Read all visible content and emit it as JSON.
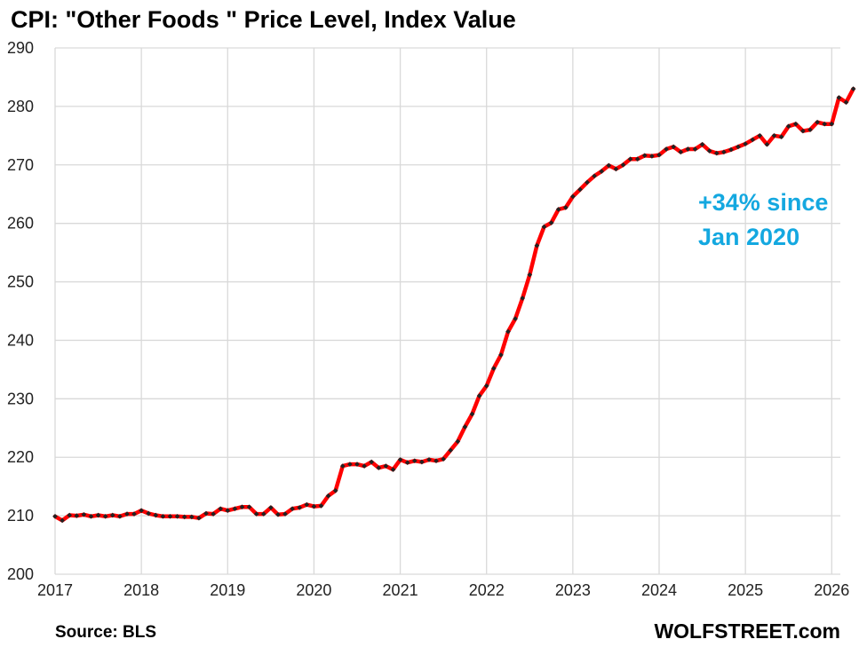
{
  "chart_data": {
    "type": "line",
    "title": "CPI: \"Other Foods \" Price Level, Index Value",
    "xlabel": "",
    "ylabel": "",
    "xlim": [
      2017,
      2026.1
    ],
    "ylim": [
      200,
      290
    ],
    "y_ticks": [
      200,
      210,
      220,
      230,
      240,
      250,
      260,
      270,
      280,
      290
    ],
    "x_ticks": [
      2017,
      2018,
      2019,
      2020,
      2021,
      2022,
      2023,
      2024,
      2025,
      2026
    ],
    "grid": true,
    "legend": "none",
    "series": [
      {
        "name": "Other Foods CPI",
        "color": "#ff0000",
        "marker_color": "#222222",
        "start": "2017-01",
        "frequency": "monthly",
        "values": [
          209.9,
          209.2,
          210.1,
          210.0,
          210.2,
          209.9,
          210.1,
          209.9,
          210.1,
          209.9,
          210.3,
          210.3,
          210.9,
          210.4,
          210.1,
          209.9,
          209.9,
          209.9,
          209.8,
          209.8,
          209.6,
          210.4,
          210.3,
          211.2,
          210.9,
          211.2,
          211.5,
          211.5,
          210.3,
          210.3,
          211.4,
          210.2,
          210.3,
          211.2,
          211.4,
          211.9,
          211.6,
          211.7,
          213.4,
          214.3,
          218.5,
          218.8,
          218.8,
          218.5,
          219.2,
          218.2,
          218.5,
          217.9,
          219.6,
          219.1,
          219.4,
          219.2,
          219.6,
          219.4,
          219.7,
          221.2,
          222.7,
          225.2,
          227.4,
          230.5,
          232.2,
          235.2,
          237.5,
          241.5,
          243.7,
          247.2,
          251.2,
          256.2,
          259.4,
          260.1,
          262.4,
          262.7,
          264.6,
          265.8,
          267.0,
          268.1,
          268.9,
          269.9,
          269.3,
          270.0,
          271.0,
          271.0,
          271.6,
          271.5,
          271.7,
          272.7,
          273.1,
          272.2,
          272.7,
          272.7,
          273.5,
          272.4,
          272.0,
          272.2,
          272.6,
          273.1,
          273.6,
          274.3,
          275.0,
          273.5,
          275.0,
          274.8,
          276.6,
          277.0,
          275.8,
          276.0,
          277.3,
          277.0,
          277.0,
          281.5,
          280.7,
          283.0
        ]
      }
    ],
    "annotations": [
      "+34% since",
      "Jan 2020"
    ],
    "annotation_color": "#14a8e0",
    "source": "Source: BLS",
    "brand": "WOLFSTREET.com"
  }
}
